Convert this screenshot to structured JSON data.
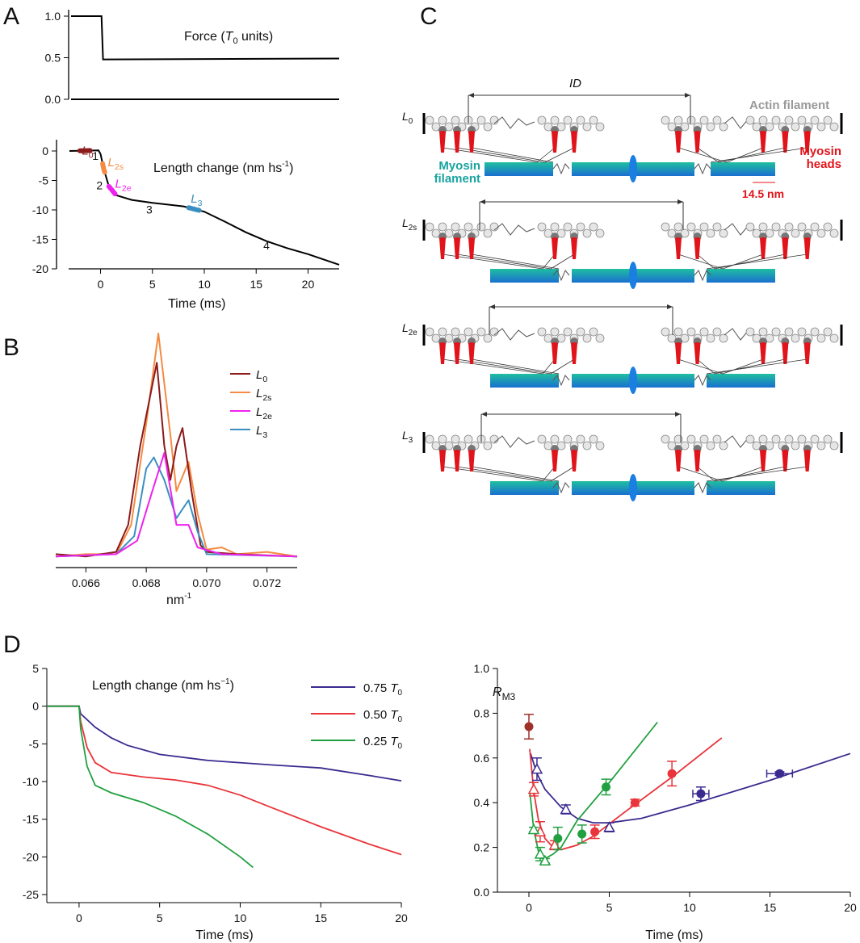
{
  "panels": {
    "a": "A",
    "b": "B",
    "c": "C",
    "d": "D"
  },
  "colors": {
    "L0": "#8b1a1a",
    "L2s": "#f58a42",
    "L2e": "#ee22ee",
    "L3": "#3a8fc0",
    "blue": "#3b2a8f",
    "red": "#e8343a",
    "green": "#20a040",
    "brown": "#a0302a",
    "teal": "#1aa3a0",
    "myosin_red": "#e0141a"
  },
  "panelA": {
    "force_label": {
      "pre": "Force (",
      "T": "T",
      "sub": "0",
      "post": " units)"
    },
    "length_label": {
      "pre": "Length change (nm hs",
      "sup": "-1",
      "post": ")"
    },
    "xlabel": "Time (ms)",
    "phase_labels": [
      "1",
      "2",
      "3",
      "4"
    ],
    "markers": [
      {
        "main": "L",
        "sub": "0"
      },
      {
        "main": "L",
        "sub": "2s"
      },
      {
        "main": "L",
        "sub": "2e"
      },
      {
        "main": "L",
        "sub": "3"
      }
    ]
  },
  "panelC": {
    "id_label": "ID",
    "actin_label": "Actin filament",
    "myosin_filament_label": [
      "Myosin",
      "filament"
    ],
    "myosin_heads_label": [
      "Myosin",
      "heads"
    ],
    "spacing_label": "14.5 nm",
    "rows": [
      {
        "main": "L",
        "sub": "0"
      },
      {
        "main": "L",
        "sub": "2s"
      },
      {
        "main": "L",
        "sub": "2e"
      },
      {
        "main": "L",
        "sub": "3"
      }
    ]
  },
  "panelD_left": {
    "title": {
      "pre": "Length change (nm hs",
      "sup": "−1",
      "post": ")"
    }
  },
  "panelD_right": {
    "ylabel": {
      "main": "R",
      "sub": "M3"
    }
  },
  "chart_data": [
    {
      "id": "A-force",
      "type": "line",
      "title": "Force (T0 units)",
      "xlim": [
        -3,
        23
      ],
      "ylim": [
        0,
        1
      ],
      "yticks": [
        "0.0",
        "0.5",
        "1.0"
      ],
      "series": [
        {
          "name": "Force",
          "x": [
            -3,
            -0.05,
            0.1,
            23
          ],
          "y": [
            1,
            1,
            0.48,
            0.49
          ]
        }
      ]
    },
    {
      "id": "A-length",
      "type": "line",
      "title": "Length change (nm hs-1)",
      "xlabel": "Time (ms)",
      "xlim": [
        -3,
        23
      ],
      "ylim": [
        -20,
        2
      ],
      "xticks": [
        "0",
        "5",
        "10",
        "15",
        "20"
      ],
      "yticks": [
        "0",
        "-5",
        "-10",
        "-15",
        "-20"
      ],
      "series": [
        {
          "name": "Length change",
          "x": [
            -3,
            -0.2,
            0,
            0.3,
            0.8,
            1.5,
            3,
            5,
            8,
            10,
            12,
            14,
            16,
            18,
            20,
            23
          ],
          "y": [
            0,
            0.1,
            -0.5,
            -3,
            -6,
            -7.5,
            -8.3,
            -8.8,
            -9.4,
            -10.3,
            -12,
            -13.8,
            -15.3,
            -16.5,
            -17.5,
            -19.3
          ]
        }
      ],
      "highlights": [
        {
          "name": "L0",
          "x": [
            -2,
            -1
          ]
        },
        {
          "name": "L2s",
          "x": [
            0.2,
            0.4
          ]
        },
        {
          "name": "L2e",
          "x": [
            0.8,
            1.4
          ]
        },
        {
          "name": "L3",
          "x": [
            8.5,
            9.5
          ]
        }
      ],
      "phases": [
        {
          "label": "1",
          "x": -0.5,
          "y": -1.5
        },
        {
          "label": "2",
          "x": -0.1,
          "y": -6.5
        },
        {
          "label": "3",
          "x": 4.7,
          "y": -10.6
        },
        {
          "label": "4",
          "x": 16,
          "y": -16.7
        }
      ]
    },
    {
      "id": "B",
      "type": "line",
      "xlabel": "nm-1",
      "xlim": [
        0.065,
        0.073
      ],
      "ylim": [
        0,
        1.05
      ],
      "xticks": [
        "0.066",
        "0.068",
        "0.070",
        "0.072"
      ],
      "legend": "top-right",
      "series": [
        {
          "name": "L0",
          "x": [
            0.065,
            0.066,
            0.0665,
            0.067,
            0.0674,
            0.0678,
            0.06835,
            0.0686,
            0.0688,
            0.069,
            0.0692,
            0.0695,
            0.0698,
            0.07,
            0.071,
            0.073
          ],
          "y": [
            0.02,
            0.01,
            0.02,
            0.03,
            0.15,
            0.5,
            0.87,
            0.5,
            0.35,
            0.5,
            0.58,
            0.3,
            0.06,
            0.03,
            0.02,
            0.01
          ]
        },
        {
          "name": "L2s",
          "x": [
            0.065,
            0.066,
            0.067,
            0.0675,
            0.068,
            0.0684,
            0.0688,
            0.069,
            0.0694,
            0.0697,
            0.07,
            0.0705,
            0.071,
            0.072,
            0.073
          ],
          "y": [
            0.01,
            0.02,
            0.02,
            0.15,
            0.6,
            1.0,
            0.55,
            0.3,
            0.43,
            0.2,
            0.04,
            0.05,
            0.02,
            0.03,
            0.01
          ]
        },
        {
          "name": "L2e",
          "x": [
            0.065,
            0.067,
            0.0677,
            0.0682,
            0.0686,
            0.069,
            0.0694,
            0.0697,
            0.0705,
            0.073
          ],
          "y": [
            0.01,
            0.02,
            0.08,
            0.3,
            0.47,
            0.15,
            0.15,
            0.05,
            0.02,
            0.01
          ]
        },
        {
          "name": "L3",
          "x": [
            0.065,
            0.067,
            0.0676,
            0.068,
            0.06825,
            0.0686,
            0.069,
            0.0694,
            0.0697,
            0.07,
            0.073
          ],
          "y": [
            0.01,
            0.02,
            0.1,
            0.4,
            0.45,
            0.35,
            0.18,
            0.26,
            0.12,
            0.02,
            0.01
          ]
        }
      ]
    },
    {
      "id": "D-left",
      "type": "line",
      "xlabel": "Time (ms)",
      "xlim": [
        -2,
        20
      ],
      "ylim": [
        -25,
        5
      ],
      "xticks": [
        "0",
        "5",
        "10",
        "15",
        "20"
      ],
      "yticks": [
        "5",
        "0",
        "-5",
        "-10",
        "-15",
        "-20",
        "-25"
      ],
      "legend": "top-right",
      "series": [
        {
          "name": "0.75 T0",
          "x": [
            -2,
            0,
            0.1,
            1,
            2,
            3,
            5,
            8,
            12,
            15,
            18,
            20
          ],
          "y": [
            0,
            0,
            -1,
            -2.8,
            -4.2,
            -5.2,
            -6.4,
            -7.2,
            -7.8,
            -8.2,
            -9.2,
            -9.9
          ]
        },
        {
          "name": "0.50 T0",
          "x": [
            -2,
            0,
            0.1,
            0.5,
            1,
            2,
            4,
            6,
            8,
            10,
            12,
            15,
            18,
            20
          ],
          "y": [
            0,
            0,
            -2,
            -5.5,
            -7.5,
            -8.8,
            -9.4,
            -9.8,
            -10.5,
            -11.8,
            -13.5,
            -16,
            -18.3,
            -19.7
          ]
        },
        {
          "name": "0.25 T0",
          "x": [
            -2,
            0,
            0.1,
            0.5,
            1,
            2,
            4,
            6,
            8,
            10,
            10.8
          ],
          "y": [
            0,
            0,
            -3,
            -8,
            -10.5,
            -11.5,
            -12.8,
            -14.6,
            -17,
            -20,
            -21.4
          ]
        }
      ],
      "legend_entries": [
        {
          "value": "0.75",
          "T": "T",
          "sub": "0"
        },
        {
          "value": "0.50",
          "T": "T",
          "sub": "0"
        },
        {
          "value": "0.25",
          "T": "T",
          "sub": "0"
        }
      ]
    },
    {
      "id": "D-right",
      "type": "scatter",
      "ylabel": "RM3",
      "xlabel": "Time (ms)",
      "xlim": [
        -2,
        20
      ],
      "ylim": [
        0,
        1
      ],
      "xticks": [
        "0",
        "5",
        "10",
        "15",
        "20"
      ],
      "yticks": [
        "0.0",
        "0.2",
        "0.4",
        "0.6",
        "0.8",
        "1.0"
      ],
      "points": [
        {
          "series": "brown",
          "x": 0,
          "y": 0.74,
          "yerr": 0.055,
          "marker": "filled"
        },
        {
          "series": "blue",
          "x": 0.5,
          "y": 0.55,
          "yerr": 0.05,
          "marker": "open-triangle"
        },
        {
          "series": "blue",
          "x": 2.3,
          "y": 0.37,
          "yerr": 0.02,
          "marker": "open-triangle"
        },
        {
          "series": "blue",
          "x": 5,
          "y": 0.29,
          "yerr": 0.02,
          "marker": "open-triangle"
        },
        {
          "series": "blue",
          "x": 10.7,
          "y": 0.44,
          "yerr": 0.03,
          "xerr": 0.5,
          "marker": "filled"
        },
        {
          "series": "blue",
          "x": 15.6,
          "y": 0.53,
          "yerr": 0.008,
          "xerr": 0.8,
          "marker": "filled"
        },
        {
          "series": "red",
          "x": 0.3,
          "y": 0.46,
          "yerr": 0.03,
          "marker": "open-triangle"
        },
        {
          "series": "red",
          "x": 0.7,
          "y": 0.27,
          "yerr": 0.045,
          "marker": "open-triangle"
        },
        {
          "series": "red",
          "x": 1.6,
          "y": 0.21,
          "yerr": 0.02,
          "marker": "open-triangle"
        },
        {
          "series": "red",
          "x": 4.1,
          "y": 0.27,
          "yerr": 0.03,
          "marker": "filled"
        },
        {
          "series": "red",
          "x": 6.6,
          "y": 0.4,
          "yerr": 0.015,
          "marker": "filled"
        },
        {
          "series": "red",
          "x": 8.9,
          "y": 0.53,
          "yerr": 0.055,
          "marker": "filled"
        },
        {
          "series": "green",
          "x": 0.3,
          "y": 0.28,
          "yerr": 0.01,
          "marker": "open-triangle"
        },
        {
          "series": "green",
          "x": 0.7,
          "y": 0.17,
          "yerr": 0.03,
          "marker": "open-triangle"
        },
        {
          "series": "green",
          "x": 1,
          "y": 0.14,
          "yerr": 0.01,
          "marker": "open-triangle"
        },
        {
          "series": "green",
          "x": 1.8,
          "y": 0.24,
          "yerr": 0.05,
          "marker": "filled"
        },
        {
          "series": "green",
          "x": 3.3,
          "y": 0.26,
          "yerr": 0.04,
          "marker": "filled"
        },
        {
          "series": "green",
          "x": 4.8,
          "y": 0.47,
          "yerr": 0.035,
          "marker": "filled"
        }
      ],
      "fits": [
        {
          "series": "blue",
          "x": [
            0.1,
            0.5,
            1,
            2,
            3,
            4,
            5,
            7,
            10,
            15,
            20
          ],
          "y": [
            0.62,
            0.53,
            0.46,
            0.38,
            0.33,
            0.31,
            0.31,
            0.33,
            0.39,
            0.5,
            0.62
          ]
        },
        {
          "series": "red",
          "x": [
            0.05,
            0.3,
            0.6,
            1,
            1.5,
            2,
            3,
            4,
            6,
            9,
            12
          ],
          "y": [
            0.64,
            0.45,
            0.32,
            0.24,
            0.2,
            0.19,
            0.21,
            0.25,
            0.36,
            0.52,
            0.69
          ]
        },
        {
          "series": "green",
          "x": [
            0.05,
            0.3,
            0.6,
            1,
            1.5,
            2,
            3,
            5,
            8
          ],
          "y": [
            0.45,
            0.28,
            0.18,
            0.15,
            0.17,
            0.2,
            0.32,
            0.49,
            0.76
          ]
        }
      ]
    }
  ]
}
